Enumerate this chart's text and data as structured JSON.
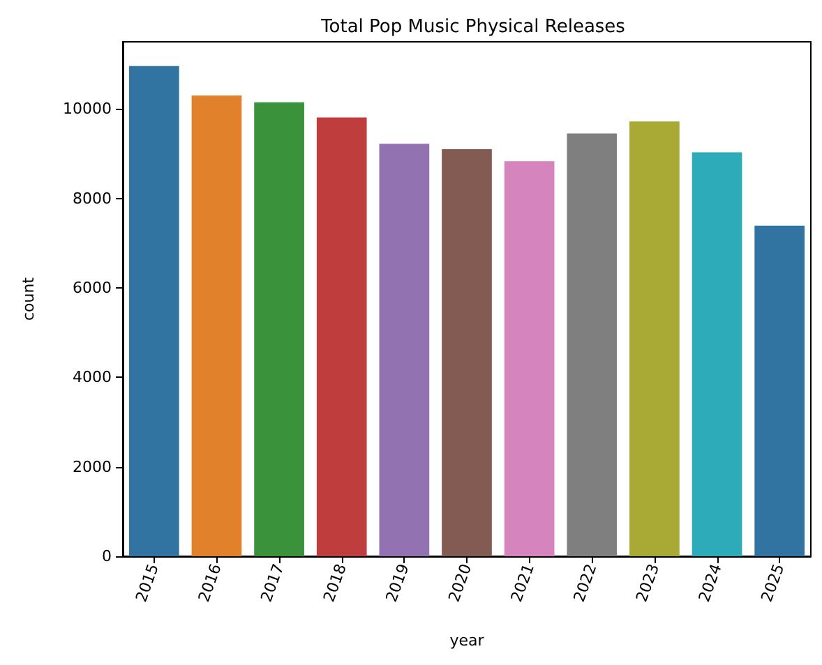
{
  "chart_data": {
    "type": "bar",
    "title": "Total Pop Music Physical Releases",
    "xlabel": "year",
    "ylabel": "count",
    "categories": [
      "2015",
      "2016",
      "2017",
      "2018",
      "2019",
      "2020",
      "2021",
      "2022",
      "2023",
      "2024",
      "2025"
    ],
    "values": [
      10960,
      10300,
      10150,
      9810,
      9220,
      9100,
      8830,
      9450,
      9720,
      9030,
      7390
    ],
    "colors": [
      "#3274a1",
      "#e1812c",
      "#3a923a",
      "#c03d3e",
      "#9372b2",
      "#845b53",
      "#d684bd",
      "#7f7f7f",
      "#a9aa35",
      "#2eabb8",
      "#3274a1"
    ],
    "ylim": [
      0,
      11500
    ],
    "yticks": [
      0,
      2000,
      4000,
      6000,
      8000,
      10000
    ],
    "grid": false
  }
}
